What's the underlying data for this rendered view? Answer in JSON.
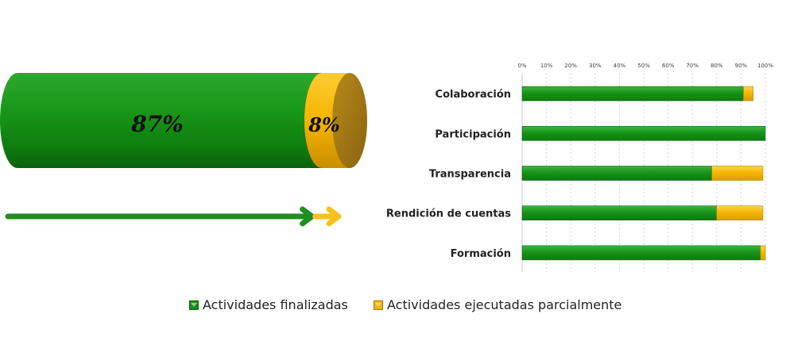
{
  "colors": {
    "finalizadas": "#169116",
    "finalizadas_dark": "#0b640b",
    "parcial": "#f4b400",
    "parcial_dark": "#a07818"
  },
  "summary": {
    "finalizadas_pct": 87,
    "parcial_pct": 8,
    "finalizadas_label": "87%",
    "parcial_label": "8%"
  },
  "legend": {
    "finalizadas": "Actividades finalizadas",
    "parcial": "Actividades ejecutadas parcialmente"
  },
  "chart_data": [
    {
      "type": "cylinder",
      "series": [
        {
          "name": "Actividades finalizadas",
          "values": [
            87
          ]
        },
        {
          "name": "Actividades ejecutadas parcialmente",
          "values": [
            8
          ]
        }
      ],
      "data_labels": [
        "87%",
        "8%"
      ]
    },
    {
      "type": "bar",
      "orientation": "horizontal",
      "stacked": true,
      "categories": [
        "Colaboración",
        "Participación",
        "Transparencia",
        "Rendición de cuentas",
        "Formación"
      ],
      "series": [
        {
          "name": "Actividades finalizadas",
          "values": [
            91,
            100,
            78,
            80,
            98
          ]
        },
        {
          "name": "Actividades ejecutadas parcialmente",
          "values": [
            4,
            0,
            21,
            19,
            3
          ]
        }
      ],
      "xlim": [
        0,
        100
      ],
      "x_ticks": [
        "0%",
        "10%",
        "20%",
        "30%",
        "40%",
        "50%",
        "60%",
        "70%",
        "80%",
        "90%",
        "100%"
      ],
      "grid": "vertical dashed",
      "legend": "bottom"
    }
  ]
}
